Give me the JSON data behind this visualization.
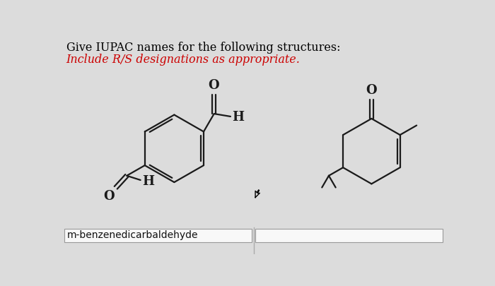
{
  "title_line1": "Give IUPAC names for the following structures:",
  "title_line2": "Include R/S designations as appropriate.",
  "title_color1": "#000000",
  "title_color2": "#cc0000",
  "label1": "m-benzenedicarbaldehyde",
  "background_color": "#dcdcdc",
  "box_bg": "#f0f0f0",
  "bond_color": "#1a1a1a",
  "lw": 1.6
}
